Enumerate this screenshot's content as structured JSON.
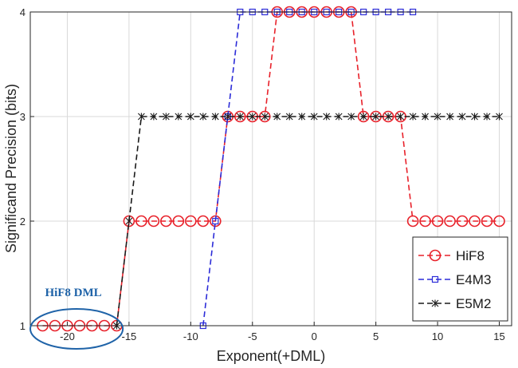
{
  "chart_data": {
    "type": "line",
    "title": "",
    "xlabel": "Exponent(+DML)",
    "ylabel": "Significand Precision (bits)",
    "xlim": [
      -23,
      16
    ],
    "ylim": [
      1,
      4
    ],
    "xticks": [
      -20,
      -15,
      -10,
      -5,
      0,
      5,
      10,
      15
    ],
    "yticks": [
      1,
      2,
      3,
      4
    ],
    "grid": true,
    "legend_position": "bottom-right",
    "series": [
      {
        "name": "HiF8",
        "color": "#e8212a",
        "marker": "circle",
        "line_style": "dashed",
        "x": [
          -22,
          -21,
          -20,
          -19,
          -18,
          -17,
          -16,
          -15,
          -14,
          -13,
          -12,
          -11,
          -10,
          -9,
          -8,
          -7,
          -6,
          -5,
          -4,
          -3,
          -2,
          -1,
          0,
          1,
          2,
          3,
          4,
          5,
          6,
          7,
          8,
          9,
          10,
          11,
          12,
          13,
          14,
          15
        ],
        "y": [
          1,
          1,
          1,
          1,
          1,
          1,
          1,
          2,
          2,
          2,
          2,
          2,
          2,
          2,
          2,
          3,
          3,
          3,
          3,
          4,
          4,
          4,
          4,
          4,
          4,
          4,
          3,
          3,
          3,
          3,
          2,
          2,
          2,
          2,
          2,
          2,
          2,
          2
        ]
      },
      {
        "name": "E4M3",
        "color": "#2c2cd8",
        "marker": "square",
        "line_style": "dashed",
        "x": [
          -9,
          -8,
          -7,
          -6,
          -5,
          -4,
          -3,
          -2,
          -1,
          0,
          1,
          2,
          3,
          4,
          5,
          6,
          7,
          8
        ],
        "y": [
          1,
          2,
          3,
          4,
          4,
          4,
          4,
          4,
          4,
          4,
          4,
          4,
          4,
          4,
          4,
          4,
          4,
          4
        ]
      },
      {
        "name": "E5M2",
        "color": "#1a1a1a",
        "marker": "star",
        "line_style": "dashed",
        "x": [
          -16,
          -15,
          -14,
          -13,
          -12,
          -11,
          -10,
          -9,
          -8,
          -7,
          -6,
          -5,
          -4,
          -3,
          -2,
          -1,
          0,
          1,
          2,
          3,
          4,
          5,
          6,
          7,
          8,
          9,
          10,
          11,
          12,
          13,
          14,
          15
        ],
        "y": [
          1,
          2,
          3,
          3,
          3,
          3,
          3,
          3,
          3,
          3,
          3,
          3,
          3,
          3,
          3,
          3,
          3,
          3,
          3,
          3,
          3,
          3,
          3,
          3,
          3,
          3,
          3,
          3,
          3,
          3,
          3,
          3
        ]
      }
    ],
    "annotation": {
      "text": "HiF8 DML",
      "color": "#1f63a8",
      "x_range": [
        -23,
        -15.5
      ],
      "y_center": 1
    }
  }
}
